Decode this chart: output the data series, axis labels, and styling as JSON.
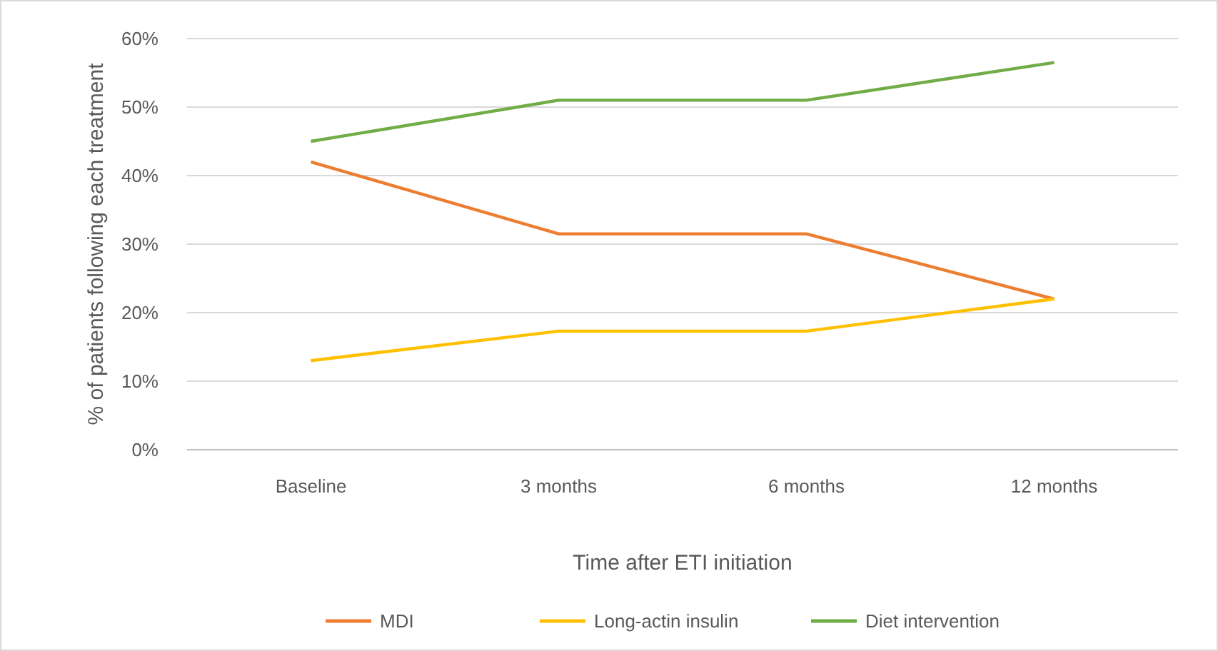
{
  "chart_data": {
    "type": "line",
    "xlabel": "Time after ETI initiation",
    "ylabel": "% of patients following each treatment",
    "categories": [
      "Baseline",
      "3 months",
      "6 months",
      "12 months"
    ],
    "series": [
      {
        "name": "MDI",
        "color": "#ed7d31",
        "values": [
          42,
          31.5,
          31.5,
          22
        ]
      },
      {
        "name": "Long-actin insulin",
        "color": "#ffc000",
        "values": [
          13,
          17.3,
          17.3,
          22
        ]
      },
      {
        "name": "Diet intervention",
        "color": "#70ad47",
        "values": [
          45,
          51,
          51,
          56.5
        ]
      }
    ],
    "ylim": [
      0,
      60
    ],
    "yticks": [
      {
        "value": 0,
        "label": "0%"
      },
      {
        "value": 10,
        "label": "10%"
      },
      {
        "value": 20,
        "label": "20%"
      },
      {
        "value": 30,
        "label": "30%"
      },
      {
        "value": 40,
        "label": "40%"
      },
      {
        "value": 50,
        "label": "50%"
      },
      {
        "value": 60,
        "label": "60%"
      }
    ],
    "grid": "y",
    "legend": "bottom",
    "marker": "none",
    "line_style": "solid"
  }
}
